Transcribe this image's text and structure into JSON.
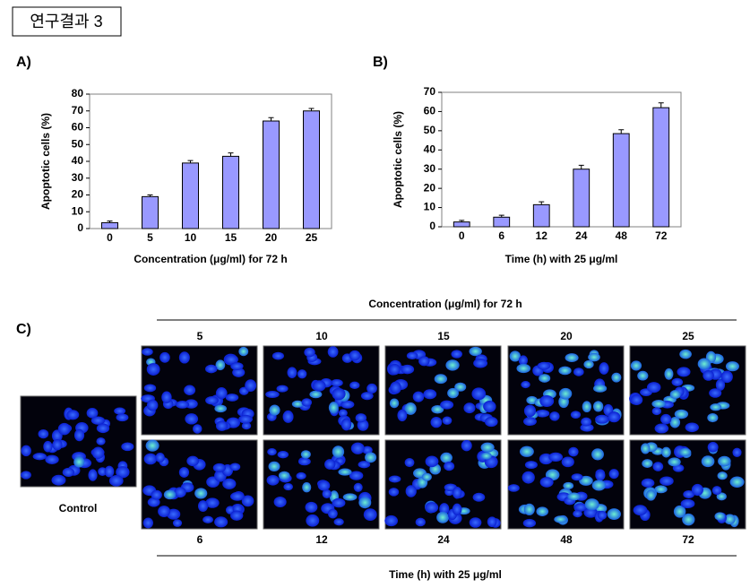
{
  "header": {
    "title": "연구결과 3"
  },
  "chart_data": [
    {
      "type": "bar",
      "label": "A)",
      "xlabel": "Concentration (μg/ml) for 72 h",
      "ylabel": "Apoptotic cells (%)",
      "categories": [
        "0",
        "5",
        "10",
        "15",
        "20",
        "25"
      ],
      "values": [
        3.5,
        19,
        39,
        43,
        64,
        70
      ],
      "errors": [
        1,
        1,
        1.5,
        2,
        2,
        1.5
      ],
      "color": "#9999ff",
      "ylim": [
        0,
        80
      ],
      "yticks": [
        0,
        10,
        20,
        30,
        40,
        50,
        60,
        70,
        80
      ]
    },
    {
      "type": "bar",
      "label": "B)",
      "xlabel": "Time (h) with 25 μg/ml",
      "ylabel": "Apoptotic cells (%)",
      "categories": [
        "0",
        "6",
        "12",
        "24",
        "48",
        "72"
      ],
      "values": [
        2.5,
        5,
        11.5,
        30,
        48.5,
        62
      ],
      "errors": [
        0.8,
        1,
        1.5,
        2,
        2,
        2.5
      ],
      "color": "#9999ff",
      "ylim": [
        0,
        70
      ],
      "yticks": [
        0,
        10,
        20,
        30,
        40,
        50,
        60,
        70
      ]
    }
  ],
  "panel_c": {
    "label": "C)",
    "top_title": "Concentration (μg/ml) for 72 h",
    "top_labels": [
      "5",
      "10",
      "15",
      "20",
      "25"
    ],
    "bottom_labels": [
      "6",
      "12",
      "24",
      "48",
      "72"
    ],
    "bottom_title": "Time (h) with 25 μg/ml",
    "control_label": "Control"
  }
}
